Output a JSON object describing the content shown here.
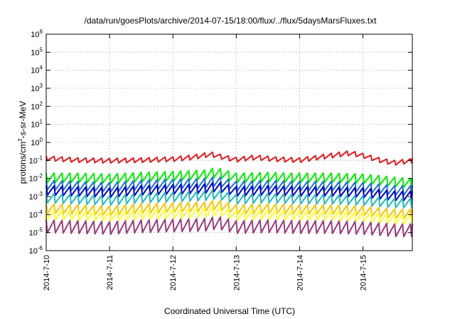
{
  "chart_data": {
    "type": "line",
    "title": "/data/run/goesPlots/archive/2014-07-15/18:00/flux/../flux/5daysMarsFluxes.txt",
    "xlabel": "Coordinated Universal Time (UTC)",
    "ylabel": "protons/cm2-s-sr-MeV",
    "ylabel_parts": {
      "pre": "protons/cm",
      "sup": "2",
      "post": "-s-sr-MeV"
    },
    "yscale": "log",
    "ylim": [
      1e-06,
      1000000.0
    ],
    "xlim": [
      0,
      5.78
    ],
    "grid": true,
    "y_ticks": [
      {
        "exp": -6,
        "base": "10",
        "sup": "-6"
      },
      {
        "exp": -5,
        "base": "10",
        "sup": "-5"
      },
      {
        "exp": -4,
        "base": "10",
        "sup": "-4"
      },
      {
        "exp": -3,
        "base": "10",
        "sup": "-3"
      },
      {
        "exp": -2,
        "base": "10",
        "sup": "-2"
      },
      {
        "exp": -1,
        "base": "10",
        "sup": "-1"
      },
      {
        "exp": 0,
        "base": "10",
        "sup": "0"
      },
      {
        "exp": 1,
        "base": "10",
        "sup": "1"
      },
      {
        "exp": 2,
        "base": "10",
        "sup": "2"
      },
      {
        "exp": 3,
        "base": "10",
        "sup": "3"
      },
      {
        "exp": 4,
        "base": "10",
        "sup": "4"
      },
      {
        "exp": 5,
        "base": "10",
        "sup": "5"
      },
      {
        "exp": 6,
        "base": "10",
        "sup": "6"
      }
    ],
    "x_ticks": [
      {
        "value": 0,
        "label": "2014-7-10"
      },
      {
        "value": 1,
        "label": "2014-7-11"
      },
      {
        "value": 2,
        "label": "2014-7-12"
      },
      {
        "value": 3,
        "label": "2014-7-13"
      },
      {
        "value": 4,
        "label": "2014-7-14"
      },
      {
        "value": 5,
        "label": "2014-7-15"
      }
    ],
    "series": [
      {
        "color": "#e41a1c",
        "points": [
          [
            0,
            0.18
          ],
          [
            0.5,
            0.14
          ],
          [
            1,
            0.13
          ],
          [
            1.5,
            0.14
          ],
          [
            2,
            0.16
          ],
          [
            2.3,
            0.2
          ],
          [
            2.6,
            0.3
          ],
          [
            2.8,
            0.2
          ],
          [
            3,
            0.15
          ],
          [
            3.3,
            0.2
          ],
          [
            3.6,
            0.16
          ],
          [
            4,
            0.14
          ],
          [
            4.3,
            0.2
          ],
          [
            4.6,
            0.28
          ],
          [
            4.8,
            0.35
          ],
          [
            5,
            0.25
          ],
          [
            5.3,
            0.13
          ],
          [
            5.5,
            0.1
          ],
          [
            5.78,
            0.13
          ]
        ]
      },
      {
        "color": "#00ee00",
        "points": [
          [
            0,
            0.02
          ],
          [
            0.5,
            0.02
          ],
          [
            1,
            0.018
          ],
          [
            1.5,
            0.022
          ],
          [
            2,
            0.025
          ],
          [
            2.5,
            0.03
          ],
          [
            2.7,
            0.04
          ],
          [
            3,
            0.02
          ],
          [
            3.5,
            0.022
          ],
          [
            4,
            0.02
          ],
          [
            4.5,
            0.02
          ],
          [
            5,
            0.018
          ],
          [
            5.5,
            0.012
          ],
          [
            5.78,
            0.01
          ]
        ]
      },
      {
        "color": "#1f6fe0",
        "points": [
          [
            0,
            0.008
          ],
          [
            0.5,
            0.007
          ],
          [
            1,
            0.006
          ],
          [
            1.5,
            0.008
          ],
          [
            2,
            0.009
          ],
          [
            2.5,
            0.01
          ],
          [
            2.7,
            0.013
          ],
          [
            3,
            0.007
          ],
          [
            3.5,
            0.008
          ],
          [
            4,
            0.007
          ],
          [
            4.5,
            0.007
          ],
          [
            5,
            0.006
          ],
          [
            5.5,
            0.004
          ],
          [
            5.78,
            0.004
          ]
        ]
      },
      {
        "color": "#0000cc",
        "points": [
          [
            0,
            0.004
          ],
          [
            0.5,
            0.0035
          ],
          [
            1,
            0.003
          ],
          [
            1.5,
            0.004
          ],
          [
            2,
            0.0045
          ],
          [
            2.5,
            0.005
          ],
          [
            2.7,
            0.0065
          ],
          [
            3,
            0.0035
          ],
          [
            3.5,
            0.004
          ],
          [
            4,
            0.0035
          ],
          [
            4.5,
            0.0035
          ],
          [
            5,
            0.003
          ],
          [
            5.5,
            0.002
          ],
          [
            5.78,
            0.002
          ]
        ]
      },
      {
        "color": "#22bbbb",
        "points": [
          [
            0,
            0.0015
          ],
          [
            0.5,
            0.0013
          ],
          [
            1,
            0.0011
          ],
          [
            1.5,
            0.0015
          ],
          [
            2,
            0.0017
          ],
          [
            2.5,
            0.002
          ],
          [
            2.7,
            0.0025
          ],
          [
            3,
            0.0013
          ],
          [
            3.5,
            0.0015
          ],
          [
            4,
            0.0013
          ],
          [
            4.5,
            0.0013
          ],
          [
            5,
            0.0011
          ],
          [
            5.5,
            0.0008
          ],
          [
            5.78,
            0.0008
          ]
        ]
      },
      {
        "color": "#f7c400",
        "points": [
          [
            0,
            0.0004
          ],
          [
            0.5,
            0.00035
          ],
          [
            1,
            0.0003
          ],
          [
            1.5,
            0.0004
          ],
          [
            2,
            0.00045
          ],
          [
            2.5,
            0.0005
          ],
          [
            2.7,
            0.00065
          ],
          [
            3,
            0.00035
          ],
          [
            3.5,
            0.0004
          ],
          [
            4,
            0.00035
          ],
          [
            4.5,
            0.00035
          ],
          [
            5,
            0.0003
          ],
          [
            5.5,
            0.0002
          ],
          [
            5.78,
            0.0002
          ]
        ]
      },
      {
        "color": "#ffff33",
        "points": [
          [
            0,
            0.00018
          ],
          [
            0.5,
            0.00016
          ],
          [
            1,
            0.00014
          ],
          [
            1.5,
            0.00018
          ],
          [
            2,
            0.0002
          ],
          [
            2.5,
            0.00023
          ],
          [
            2.7,
            0.0003
          ],
          [
            3,
            0.00016
          ],
          [
            3.5,
            0.00018
          ],
          [
            4,
            0.00016
          ],
          [
            4.5,
            0.00016
          ],
          [
            5,
            0.00014
          ],
          [
            5.5,
            0.0001
          ],
          [
            5.78,
            0.0001
          ]
        ]
      },
      {
        "color": "#9b3a7a",
        "points": [
          [
            0,
            5e-05
          ],
          [
            0.5,
            4.5e-05
          ],
          [
            1,
            4e-05
          ],
          [
            1.5,
            5e-05
          ],
          [
            2,
            5.5e-05
          ],
          [
            2.5,
            6e-05
          ],
          [
            2.7,
            8e-05
          ],
          [
            3,
            4.5e-05
          ],
          [
            3.5,
            5e-05
          ],
          [
            4,
            4.5e-05
          ],
          [
            4.5,
            4.5e-05
          ],
          [
            5,
            4e-05
          ],
          [
            5.5,
            3e-05
          ],
          [
            5.78,
            3e-05
          ]
        ]
      }
    ],
    "sawtooth": {
      "cycles_per_day": 8,
      "dip_factors": [
        0.55,
        0.3,
        0.3,
        0.3,
        0.3,
        0.3,
        0.3,
        0.2
      ]
    }
  }
}
